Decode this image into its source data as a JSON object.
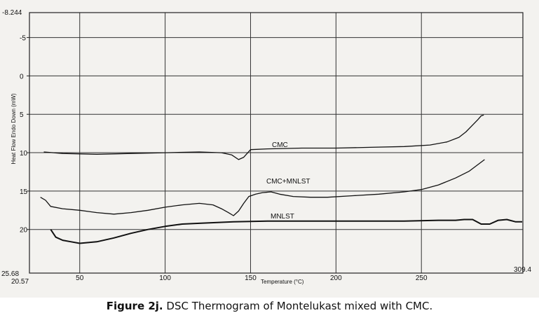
{
  "chart_data": {
    "type": "line",
    "title": "",
    "xlabel": "Temperature (°C)",
    "ylabel": "Heat Flow Endo Down (mW)",
    "xlim": [
      20.57,
      309.4
    ],
    "ylim": [
      -8.244,
      25.68
    ],
    "y_inverted": true,
    "x_ticks": [
      50,
      100,
      150,
      200,
      250
    ],
    "y_ticks": [
      -5,
      0,
      5,
      10,
      15,
      20
    ],
    "x_min_label": "20.57",
    "x_max_label": "309.4",
    "y_top_label": "-8.244",
    "y_bottom_label": "25.68",
    "grid": true,
    "series": [
      {
        "name": "CMC",
        "color": "#111111",
        "x": [
          29,
          40,
          60,
          80,
          100,
          120,
          133,
          139,
          143,
          146,
          150,
          160,
          180,
          200,
          220,
          240,
          255,
          265,
          272,
          276,
          280,
          283,
          285,
          286.5
        ],
        "y": [
          9.9,
          10.1,
          10.2,
          10.1,
          10.0,
          9.9,
          10.0,
          10.3,
          10.9,
          10.6,
          9.6,
          9.5,
          9.4,
          9.4,
          9.3,
          9.2,
          9.0,
          8.6,
          8.0,
          7.3,
          6.4,
          5.7,
          5.2,
          5.1
        ]
      },
      {
        "name": "CMC+MNLST",
        "color": "#111111",
        "x": [
          27,
          30,
          33,
          40,
          50,
          60,
          70,
          80,
          90,
          100,
          110,
          120,
          128,
          133,
          137,
          140,
          143,
          146,
          149,
          153,
          157,
          162,
          167,
          175,
          185,
          195,
          210,
          225,
          240,
          250,
          260,
          270,
          278,
          284,
          287
        ],
        "y": [
          15.8,
          16.2,
          17.0,
          17.3,
          17.5,
          17.8,
          18.0,
          17.8,
          17.5,
          17.1,
          16.8,
          16.6,
          16.8,
          17.3,
          17.8,
          18.2,
          17.6,
          16.6,
          15.7,
          15.4,
          15.2,
          15.1,
          15.4,
          15.7,
          15.8,
          15.8,
          15.6,
          15.4,
          15.1,
          14.8,
          14.2,
          13.3,
          12.4,
          11.4,
          10.9
        ]
      },
      {
        "name": "MNLST",
        "color": "#111111",
        "x": [
          33,
          36,
          40,
          45,
          50,
          55,
          60,
          70,
          80,
          90,
          100,
          110,
          120,
          140,
          160,
          180,
          200,
          220,
          240,
          260,
          270,
          275,
          280,
          285,
          290,
          295,
          300,
          305,
          309
        ],
        "y": [
          20.0,
          21.0,
          21.4,
          21.6,
          21.8,
          21.7,
          21.6,
          21.1,
          20.5,
          20.0,
          19.6,
          19.3,
          19.2,
          19.0,
          18.9,
          18.9,
          18.9,
          18.9,
          18.9,
          18.8,
          18.8,
          18.7,
          18.7,
          19.3,
          19.3,
          18.8,
          18.7,
          19.0,
          19.0
        ]
      }
    ]
  },
  "caption": {
    "label": "Figure 2j.",
    "text": " DSC Thermogram of Montelukast mixed with CMC."
  }
}
